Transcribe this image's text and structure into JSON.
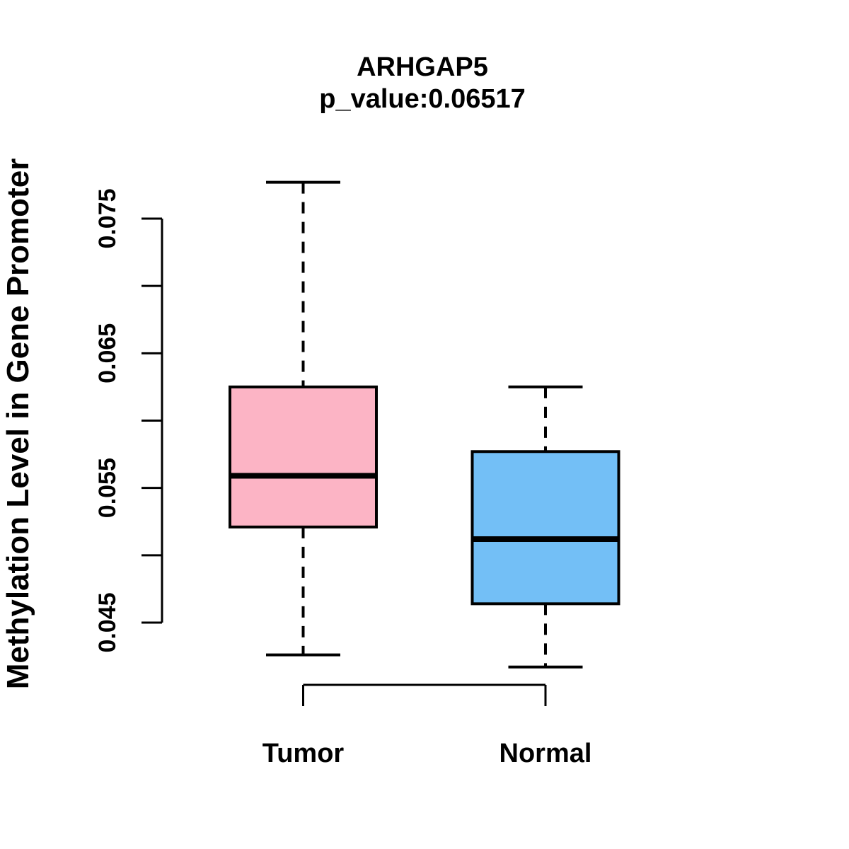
{
  "title": {
    "line1": "ARHGAP5",
    "line2": "p_value:0.06517"
  },
  "y_axis": {
    "label": "Methylation Level in Gene Promoter",
    "ticks": [
      {
        "value": 0.045,
        "label": "0.045"
      },
      {
        "value": 0.05,
        "label": ""
      },
      {
        "value": 0.055,
        "label": "0.055"
      },
      {
        "value": 0.06,
        "label": ""
      },
      {
        "value": 0.065,
        "label": "0.065"
      },
      {
        "value": 0.07,
        "label": ""
      },
      {
        "value": 0.075,
        "label": "0.075"
      }
    ]
  },
  "x_axis": {
    "categories": [
      "Tumor",
      "Normal"
    ]
  },
  "colors": {
    "tumor_fill": "#FCB4C5",
    "normal_fill": "#73BFF6",
    "stroke": "#000000",
    "background": "#FFFFFF"
  },
  "chart_data": {
    "type": "boxplot",
    "title": "ARHGAP5",
    "subtitle": "p_value:0.06517",
    "xlabel": "",
    "ylabel": "Methylation Level in Gene Promoter",
    "categories": [
      "Tumor",
      "Normal"
    ],
    "ylim": [
      0.042,
      0.078
    ],
    "y_ticks_all": [
      0.045,
      0.05,
      0.055,
      0.06,
      0.065,
      0.07,
      0.075
    ],
    "y_ticks_labeled": [
      0.045,
      0.055,
      0.065,
      0.075
    ],
    "grid": false,
    "legend": "none",
    "series": [
      {
        "name": "Tumor",
        "color": "#FCB4C5",
        "whisker_low": 0.0426,
        "q1": 0.0521,
        "median": 0.0559,
        "q3": 0.0625,
        "whisker_high": 0.0777,
        "outliers": []
      },
      {
        "name": "Normal",
        "color": "#73BFF6",
        "whisker_low": 0.0417,
        "q1": 0.0464,
        "median": 0.0512,
        "q3": 0.0577,
        "whisker_high": 0.0625,
        "outliers": []
      }
    ]
  }
}
